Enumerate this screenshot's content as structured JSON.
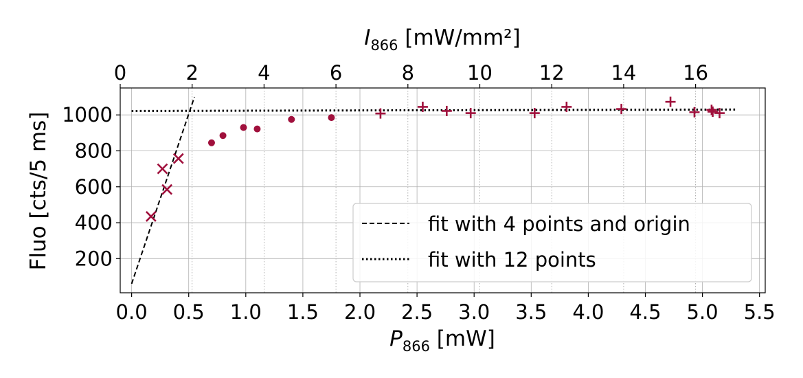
{
  "chart_data": {
    "type": "scatter",
    "xlabel_main": "P",
    "xlabel_sub": "866",
    "xlabel_unit": " [mW]",
    "x2label_main": "I",
    "x2label_sub": "866",
    "x2label_unit": " [mW/mm²]",
    "ylabel": "Fluo [cts/5 ms]",
    "xlim": [
      -0.1,
      5.55
    ],
    "ylim": [
      10,
      1150
    ],
    "xticks": [
      "0.0",
      "0.5",
      "1.0",
      "1.5",
      "2.0",
      "2.5",
      "3.0",
      "3.5",
      "4.0",
      "4.5",
      "5.0",
      "5.5"
    ],
    "xtick_values": [
      0.0,
      0.5,
      1.0,
      1.5,
      2.0,
      2.5,
      3.0,
      3.5,
      4.0,
      4.5,
      5.0,
      5.5
    ],
    "x2ticks": [
      "0",
      "2",
      "4",
      "6",
      "8",
      "10",
      "12",
      "14",
      "16"
    ],
    "x2tick_positions_p": [
      -0.1,
      0.53,
      1.16,
      1.79,
      2.42,
      3.05,
      3.68,
      4.31,
      4.94
    ],
    "yticks": [
      "200",
      "400",
      "600",
      "800",
      "1000"
    ],
    "ytick_values": [
      200,
      400,
      600,
      800,
      1000
    ],
    "grid": true,
    "legend_position": "bottom-right",
    "color": "#a0103c",
    "series": [
      {
        "marker": "x",
        "points": [
          [
            0.17,
            435
          ],
          [
            0.27,
            700
          ],
          [
            0.31,
            585
          ],
          [
            0.41,
            757
          ]
        ]
      },
      {
        "marker": "dot",
        "points": [
          [
            0.7,
            845
          ],
          [
            0.8,
            885
          ],
          [
            0.98,
            930
          ],
          [
            1.1,
            922
          ],
          [
            1.4,
            975
          ],
          [
            1.75,
            985
          ]
        ]
      },
      {
        "marker": "plus",
        "points": [
          [
            2.18,
            1008
          ],
          [
            2.55,
            1045
          ],
          [
            2.76,
            1022
          ],
          [
            2.97,
            1010
          ],
          [
            3.53,
            1010
          ],
          [
            3.81,
            1045
          ],
          [
            4.29,
            1033
          ],
          [
            4.72,
            1073
          ],
          [
            4.93,
            1015
          ],
          [
            5.08,
            1028
          ],
          [
            5.09,
            1018
          ],
          [
            5.15,
            1010
          ]
        ]
      }
    ],
    "fit_lines": [
      {
        "name": "fit with 4 points and origin",
        "style": "dashed",
        "points": [
          [
            0.0,
            60
          ],
          [
            0.55,
            1100
          ]
        ]
      },
      {
        "name": "fit with 12 points",
        "style": "dotted",
        "points": [
          [
            0.0,
            1022
          ],
          [
            5.3,
            1030
          ]
        ]
      }
    ]
  }
}
